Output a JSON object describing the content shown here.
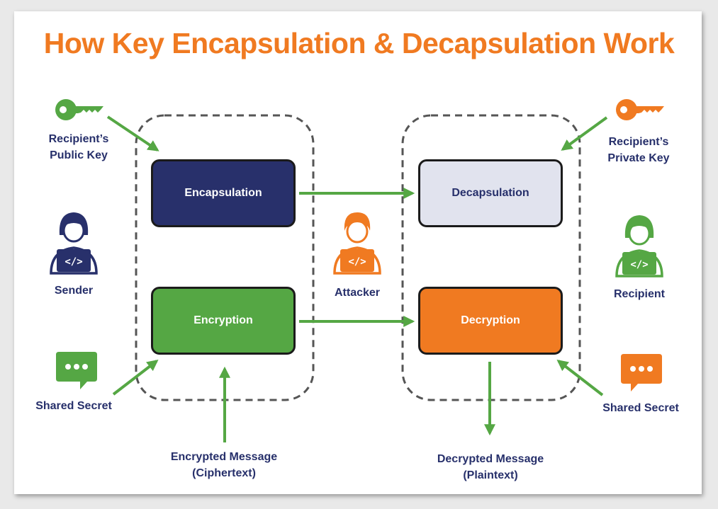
{
  "title": "How Key Encapsulation & Decapsulation Work",
  "colors": {
    "navy": "#28306b",
    "green": "#55a744",
    "orange": "#f07a21",
    "light": "#e1e3ee",
    "arrow": "#55a744",
    "dashed": "#555555"
  },
  "boxes": {
    "encapsulation": "Encapsulation",
    "decapsulation": "Decapsulation",
    "encryption": "Encryption",
    "decryption": "Decryption"
  },
  "labels": {
    "public_key_line1": "Recipient’s",
    "public_key_line2": "Public Key",
    "private_key_line1": "Recipient’s",
    "private_key_line2": "Private Key",
    "sender": "Sender",
    "attacker": "Attacker",
    "recipient": "Recipient",
    "shared_secret_left": "Shared Secret",
    "shared_secret_right": "Shared Secret",
    "encrypted_line1": "Encrypted Message",
    "encrypted_line2": "(Ciphertext)",
    "decrypted_line1": "Decrypted Message",
    "decrypted_line2": "(Plaintext)"
  },
  "icons": {
    "public_key": "key-icon",
    "private_key": "key-icon",
    "sender": "person-laptop-icon",
    "attacker": "person-laptop-icon",
    "recipient": "person-laptop-icon",
    "shared_secret_left": "speech-bubble-icon",
    "shared_secret_right": "speech-bubble-icon",
    "code_glyph": "</>"
  }
}
